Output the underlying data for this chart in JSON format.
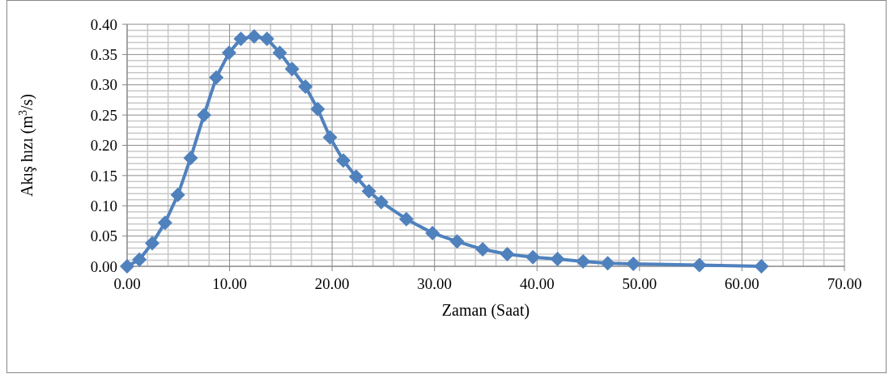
{
  "chart_data": {
    "type": "line",
    "xlabel": "Zaman (Saat)",
    "ylabel": "Akış hızı (m$^{3}$/s)",
    "xlim": [
      0,
      70
    ],
    "xticks": [
      {
        "value": 0,
        "label": "0.00"
      },
      {
        "value": 10,
        "label": "10.00"
      },
      {
        "value": 20,
        "label": "20.00"
      },
      {
        "value": 30,
        "label": "30.00"
      },
      {
        "value": 40,
        "label": "40.00"
      },
      {
        "value": 50,
        "label": "50.00"
      },
      {
        "value": 60,
        "label": "60.00"
      },
      {
        "value": 70,
        "label": "70.00"
      }
    ],
    "ylim": [
      0,
      0.4
    ],
    "yticks": [
      {
        "value": 0,
        "label": "0.00"
      },
      {
        "value": 0.05,
        "label": "0.05"
      },
      {
        "value": 0.1,
        "label": "0.10"
      },
      {
        "value": 0.15,
        "label": "0.15"
      },
      {
        "value": 0.2,
        "label": "0.20"
      },
      {
        "value": 0.25,
        "label": "0.25"
      },
      {
        "value": 0.3,
        "label": "0.30"
      },
      {
        "value": 0.35,
        "label": "0.35"
      },
      {
        "value": 0.4,
        "label": "0.40"
      }
    ],
    "grid": true,
    "marker": "diamond",
    "line_style": "solid",
    "series": [
      {
        "color": "#4f81bd",
        "x": [
          0,
          1.2,
          2.45,
          3.7,
          4.95,
          6.2,
          7.5,
          8.7,
          9.95,
          11.1,
          12.4,
          13.65,
          14.9,
          16.1,
          17.4,
          18.6,
          19.8,
          21.1,
          22.35,
          23.6,
          24.8,
          27.25,
          29.8,
          32.2,
          34.7,
          37.1,
          39.6,
          42,
          44.5,
          46.9,
          49.4,
          55.85,
          61.9
        ],
        "values": [
          0,
          0.011,
          0.038,
          0.072,
          0.118,
          0.179,
          0.25,
          0.312,
          0.353,
          0.376,
          0.38,
          0.376,
          0.353,
          0.326,
          0.297,
          0.26,
          0.213,
          0.175,
          0.148,
          0.124,
          0.106,
          0.078,
          0.055,
          0.041,
          0.028,
          0.02,
          0.015,
          0.012,
          0.008,
          0.005,
          0.004,
          0.002,
          0
        ]
      }
    ]
  }
}
